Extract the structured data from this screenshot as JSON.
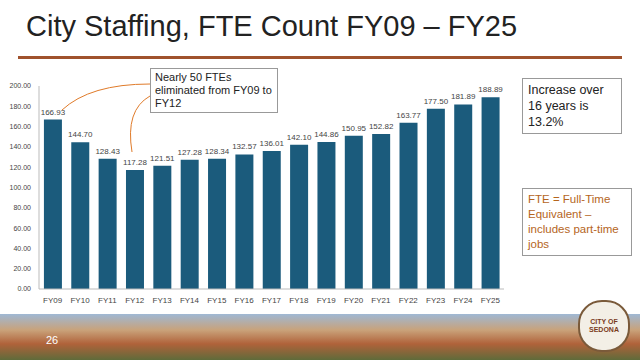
{
  "chart_data": {
    "type": "bar",
    "title": "City Staffing, FTE Count FY09 – FY25",
    "categories": [
      "FY09",
      "FY10",
      "FY11",
      "FY12",
      "FY13",
      "FY14",
      "FY15",
      "FY16",
      "FY17",
      "FY18",
      "FY19",
      "FY20",
      "FY21",
      "FY22",
      "FY23",
      "FY24",
      "FY25"
    ],
    "values": [
      166.93,
      144.7,
      128.43,
      117.28,
      121.51,
      127.28,
      128.34,
      132.57,
      136.01,
      142.1,
      144.86,
      150.95,
      152.82,
      163.77,
      177.5,
      181.89,
      188.89
    ],
    "value_labels": [
      "166.93",
      "144.70",
      "128.43",
      "117.28",
      "121.51",
      "127.28",
      "128.34",
      "132.57",
      "136.01",
      "142.10",
      "144.86",
      "150.95",
      "152.82",
      "163.77",
      "177.50",
      "181.89",
      "188.89"
    ],
    "data_labels": true,
    "color": "#1b5b7c",
    "ylim": [
      0,
      200
    ],
    "yticks": [
      {
        "value": 0,
        "label": "0.00"
      },
      {
        "value": 20,
        "label": "20.00"
      },
      {
        "value": 40,
        "label": "40.00"
      },
      {
        "value": 60,
        "label": "60.00"
      },
      {
        "value": 80,
        "label": "80.00"
      },
      {
        "value": 100,
        "label": "100.00"
      },
      {
        "value": 120,
        "label": "120.00"
      },
      {
        "value": 140,
        "label": "140.00"
      },
      {
        "value": 160,
        "label": "160.00"
      },
      {
        "value": 180,
        "label": "180.00"
      },
      {
        "value": 200,
        "label": "200.00"
      }
    ],
    "grid": false,
    "annotations": [
      "Nearly 50 FTEs eliminated from FY09 to FY12",
      "Increase over 16 years is 13.2%",
      "FTE = Full-Time Equivalent – includes part-time jobs"
    ]
  },
  "slide": {
    "page_number": "26",
    "logo_text": "CITY OF SEDONA"
  }
}
